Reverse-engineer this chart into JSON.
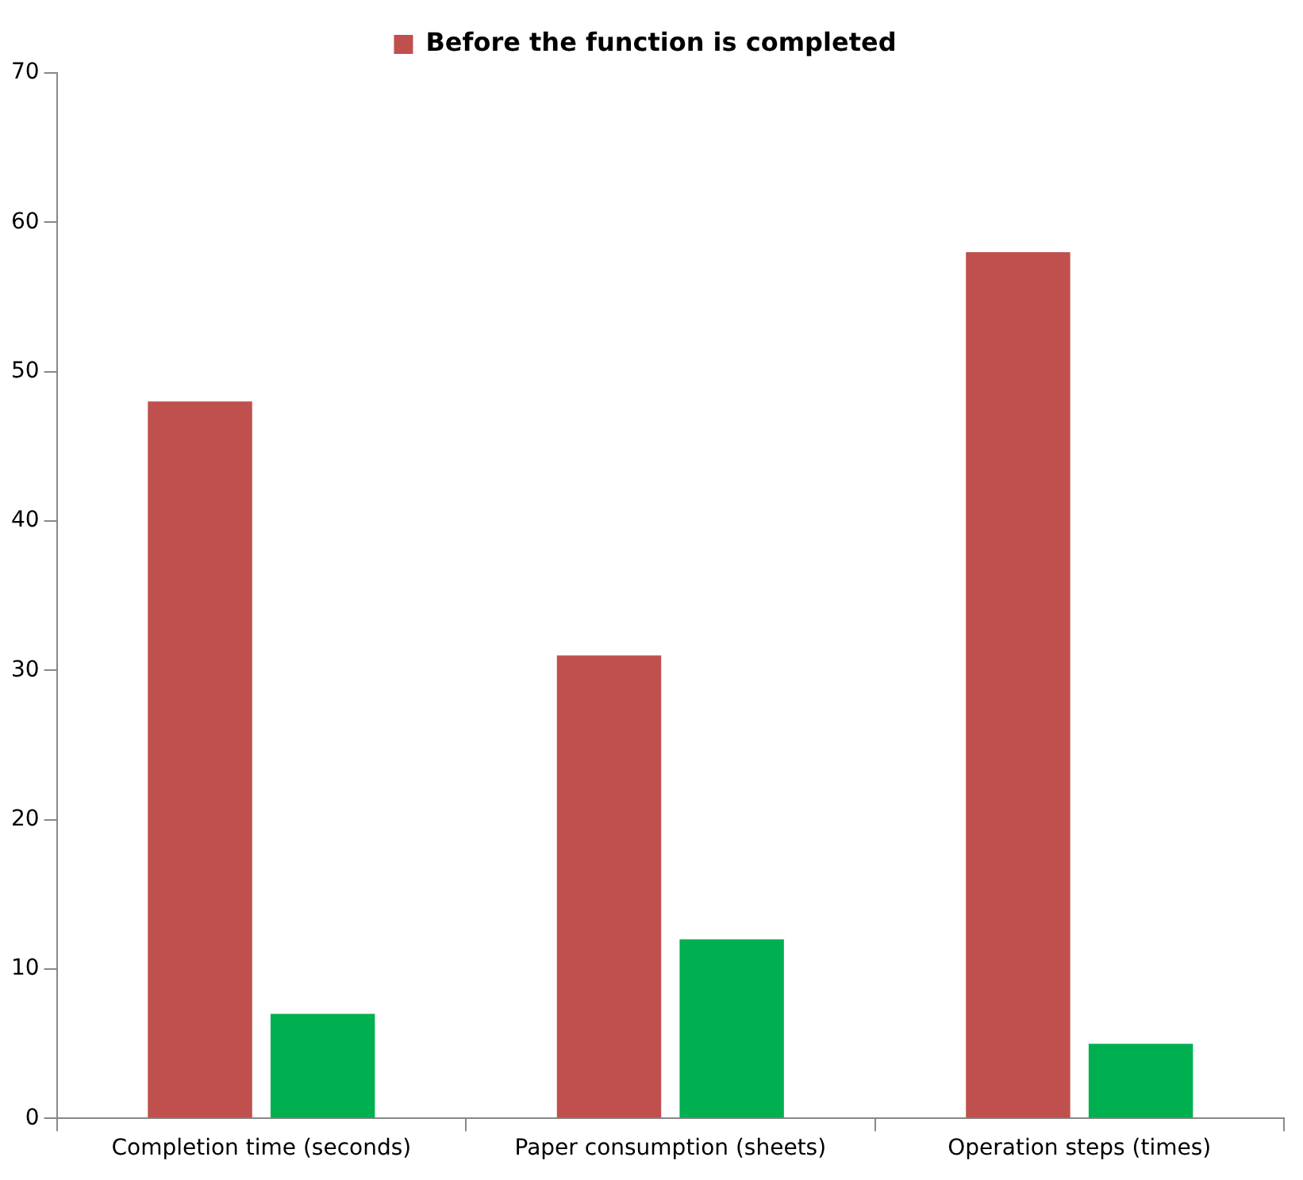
{
  "chart_data": {
    "type": "bar",
    "categories": [
      "Completion time (seconds)",
      "Paper consumption (sheets)",
      "Operation steps (times)"
    ],
    "series": [
      {
        "name": "Before the function is completed",
        "color": "#c0504d",
        "values": [
          48,
          31,
          58
        ]
      },
      {
        "color": "#00b050",
        "values": [
          7,
          12,
          5
        ]
      }
    ],
    "ylim": [
      0,
      70
    ],
    "yticks": [
      0,
      10,
      20,
      30,
      40,
      50,
      60,
      70
    ],
    "grid": false,
    "legend": "top"
  }
}
